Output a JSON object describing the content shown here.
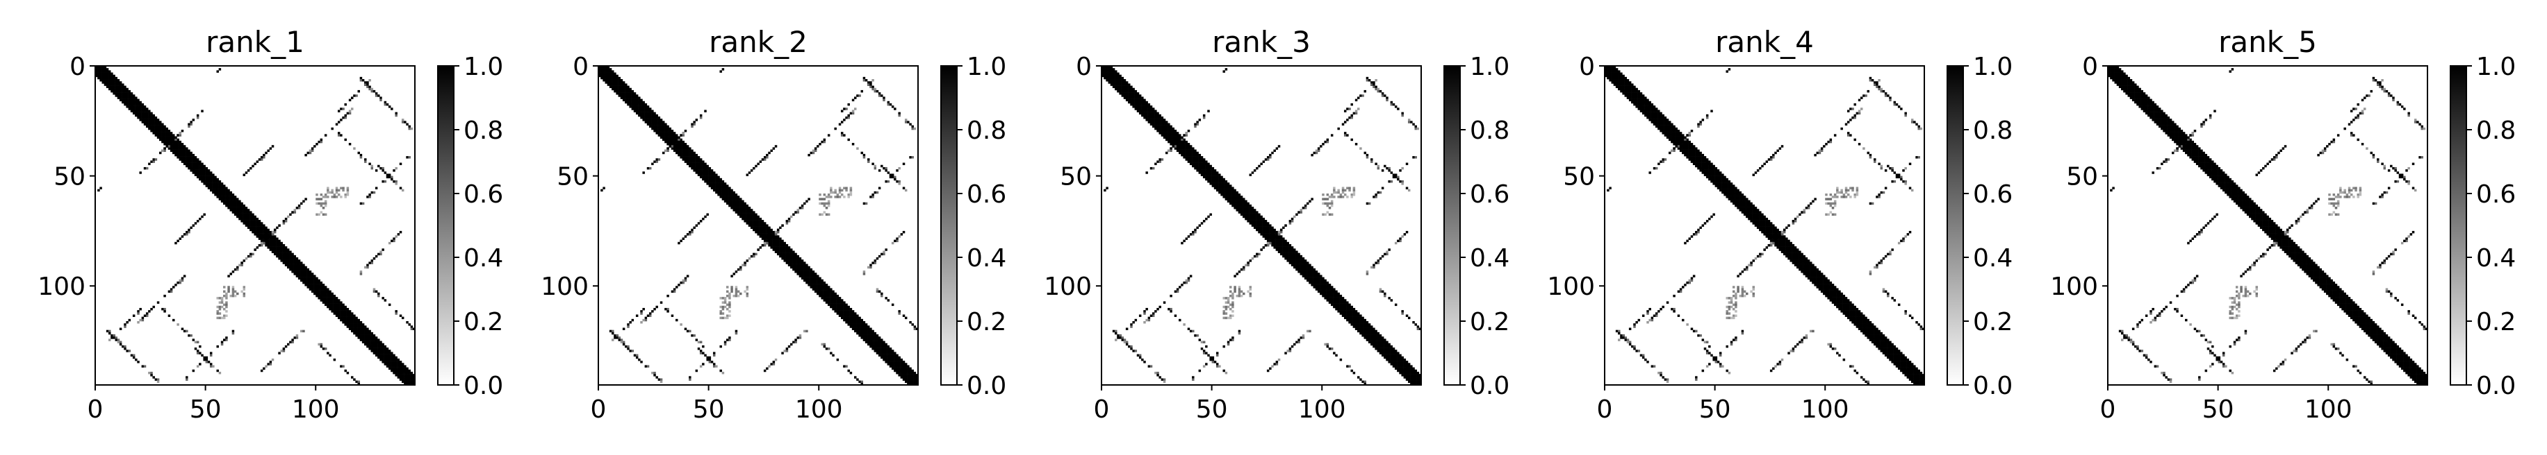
{
  "chart_data": [
    {
      "type": "heatmap",
      "title": "rank_1",
      "xlim": [
        0,
        145
      ],
      "ylim": [
        145,
        0
      ],
      "xticks": [
        0,
        50,
        100
      ],
      "yticks": [
        0,
        50,
        100
      ],
      "colorbar": {
        "ticks": [
          "0.0",
          "0.2",
          "0.4",
          "0.6",
          "0.8",
          "1.0"
        ],
        "range": [
          0,
          1
        ],
        "colormap": "gray_r"
      },
      "description": "symmetric binary contact map with thick main diagonal"
    },
    {
      "type": "heatmap",
      "title": "rank_2",
      "xlim": [
        0,
        145
      ],
      "ylim": [
        145,
        0
      ],
      "xticks": [
        0,
        50,
        100
      ],
      "yticks": [
        0,
        50,
        100
      ],
      "colorbar": {
        "ticks": [
          "0.0",
          "0.2",
          "0.4",
          "0.6",
          "0.8",
          "1.0"
        ],
        "range": [
          0,
          1
        ],
        "colormap": "gray_r"
      }
    },
    {
      "type": "heatmap",
      "title": "rank_3",
      "xlim": [
        0,
        145
      ],
      "ylim": [
        145,
        0
      ],
      "xticks": [
        0,
        50,
        100
      ],
      "yticks": [
        0,
        50,
        100
      ],
      "colorbar": {
        "ticks": [
          "0.0",
          "0.2",
          "0.4",
          "0.6",
          "0.8",
          "1.0"
        ],
        "range": [
          0,
          1
        ],
        "colormap": "gray_r"
      }
    },
    {
      "type": "heatmap",
      "title": "rank_4",
      "xlim": [
        0,
        145
      ],
      "ylim": [
        145,
        0
      ],
      "xticks": [
        0,
        50,
        100
      ],
      "yticks": [
        0,
        50,
        100
      ],
      "colorbar": {
        "ticks": [
          "0.0",
          "0.2",
          "0.4",
          "0.6",
          "0.8",
          "1.0"
        ],
        "range": [
          0,
          1
        ],
        "colormap": "gray_r"
      }
    },
    {
      "type": "heatmap",
      "title": "rank_5",
      "xlim": [
        0,
        145
      ],
      "ylim": [
        145,
        0
      ],
      "xticks": [
        0,
        50,
        100
      ],
      "yticks": [
        0,
        50,
        100
      ],
      "colorbar": {
        "ticks": [
          "0.0",
          "0.2",
          "0.4",
          "0.6",
          "0.8",
          "1.0"
        ],
        "range": [
          0,
          1
        ],
        "colormap": "gray_r"
      }
    }
  ]
}
